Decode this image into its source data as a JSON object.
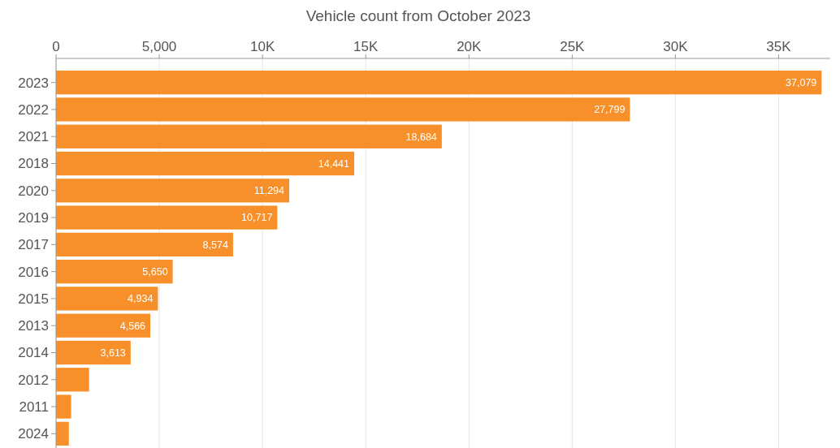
{
  "chart_data": {
    "type": "bar",
    "orientation": "horizontal",
    "title": "Vehicle count from October 2023",
    "categories": [
      "2023",
      "2022",
      "2021",
      "2018",
      "2020",
      "2019",
      "2017",
      "2016",
      "2015",
      "2013",
      "2014",
      "2012",
      "2011",
      "2024"
    ],
    "values": [
      37079,
      27799,
      18684,
      14441,
      11294,
      10717,
      8574,
      5650,
      4934,
      4566,
      3613,
      1600,
      730,
      620
    ],
    "value_labels": [
      "37,079",
      "27,799",
      "18,684",
      "14,441",
      "11,294",
      "10,717",
      "8,574",
      "5,650",
      "4,934",
      "4,566",
      "3,613",
      null,
      null,
      null
    ],
    "color": "#f7902a",
    "xlim": [
      0,
      37500
    ],
    "xticks": [
      0,
      {
        "value": 5000,
        "label": "5,000"
      },
      {
        "value": 10000,
        "label": "10K"
      },
      {
        "value": 15000,
        "label": "15K"
      },
      {
        "value": 20000,
        "label": "20K"
      },
      {
        "value": 25000,
        "label": "25K"
      },
      {
        "value": 30000,
        "label": "30K"
      },
      {
        "value": 35000,
        "label": "35K"
      }
    ],
    "grid": "x"
  }
}
